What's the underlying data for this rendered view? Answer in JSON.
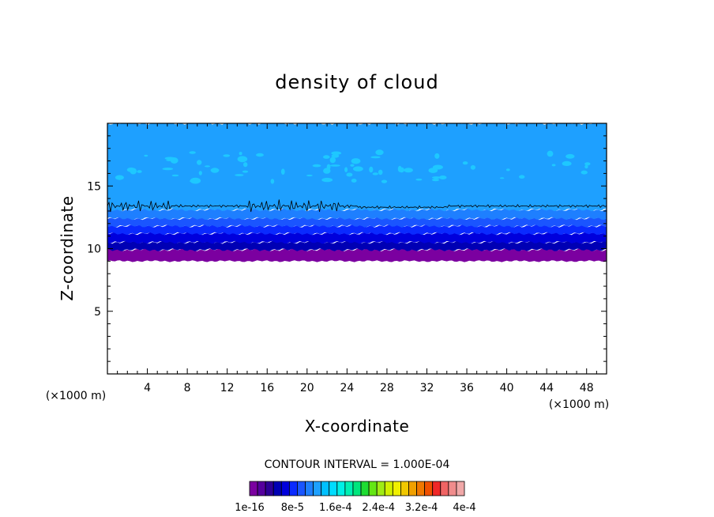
{
  "chart_data": {
    "type": "contour",
    "title": "density of cloud",
    "xlabel": "X-coordinate",
    "ylabel": "Z-coordinate",
    "x_unit": "(×1000 m)",
    "y_unit": "(×1000 m)",
    "xlim": [
      0,
      50
    ],
    "ylim": [
      0,
      20
    ],
    "x_ticks": [
      4,
      8,
      12,
      16,
      20,
      24,
      28,
      32,
      36,
      40,
      44,
      48
    ],
    "y_ticks": [
      5,
      10,
      15
    ],
    "contour_interval_text": "CONTOUR INTERVAL = 1.000E-04",
    "colorbar": {
      "labels": [
        "1e-16",
        "8e-5",
        "1.6e-4",
        "2.4e-4",
        "3.2e-4",
        "4e-4"
      ],
      "colors": [
        "#7b00a0",
        "#55009d",
        "#2d0096",
        "#0000b4",
        "#0000dc",
        "#0a2aff",
        "#1a55ff",
        "#1e7fff",
        "#1ea0ff",
        "#00c0ff",
        "#00dcff",
        "#00f0e6",
        "#00f0b4",
        "#00e67d",
        "#1edc32",
        "#64e614",
        "#a0eb14",
        "#d2f000",
        "#f0f000",
        "#f0c800",
        "#f0a000",
        "#f07800",
        "#f05000",
        "#f02828",
        "#f06464",
        "#f08c8c",
        "#f0a8a8"
      ]
    },
    "layers": [
      {
        "z_bottom": 9.0,
        "z_top": 9.9,
        "color": "#7b00a0"
      },
      {
        "z_bottom": 9.9,
        "z_top": 10.5,
        "color": "#0000b4"
      },
      {
        "z_bottom": 10.5,
        "z_top": 11.2,
        "color": "#0000dc"
      },
      {
        "z_bottom": 11.2,
        "z_top": 11.8,
        "color": "#0a2aff"
      },
      {
        "z_bottom": 11.8,
        "z_top": 12.4,
        "color": "#1a55ff"
      },
      {
        "z_bottom": 12.4,
        "z_top": 13.1,
        "color": "#1e7fff"
      },
      {
        "z_bottom": 13.1,
        "z_top": 20.0,
        "color": "#1ea0ff"
      }
    ],
    "contour_line_z": 13.4
  }
}
